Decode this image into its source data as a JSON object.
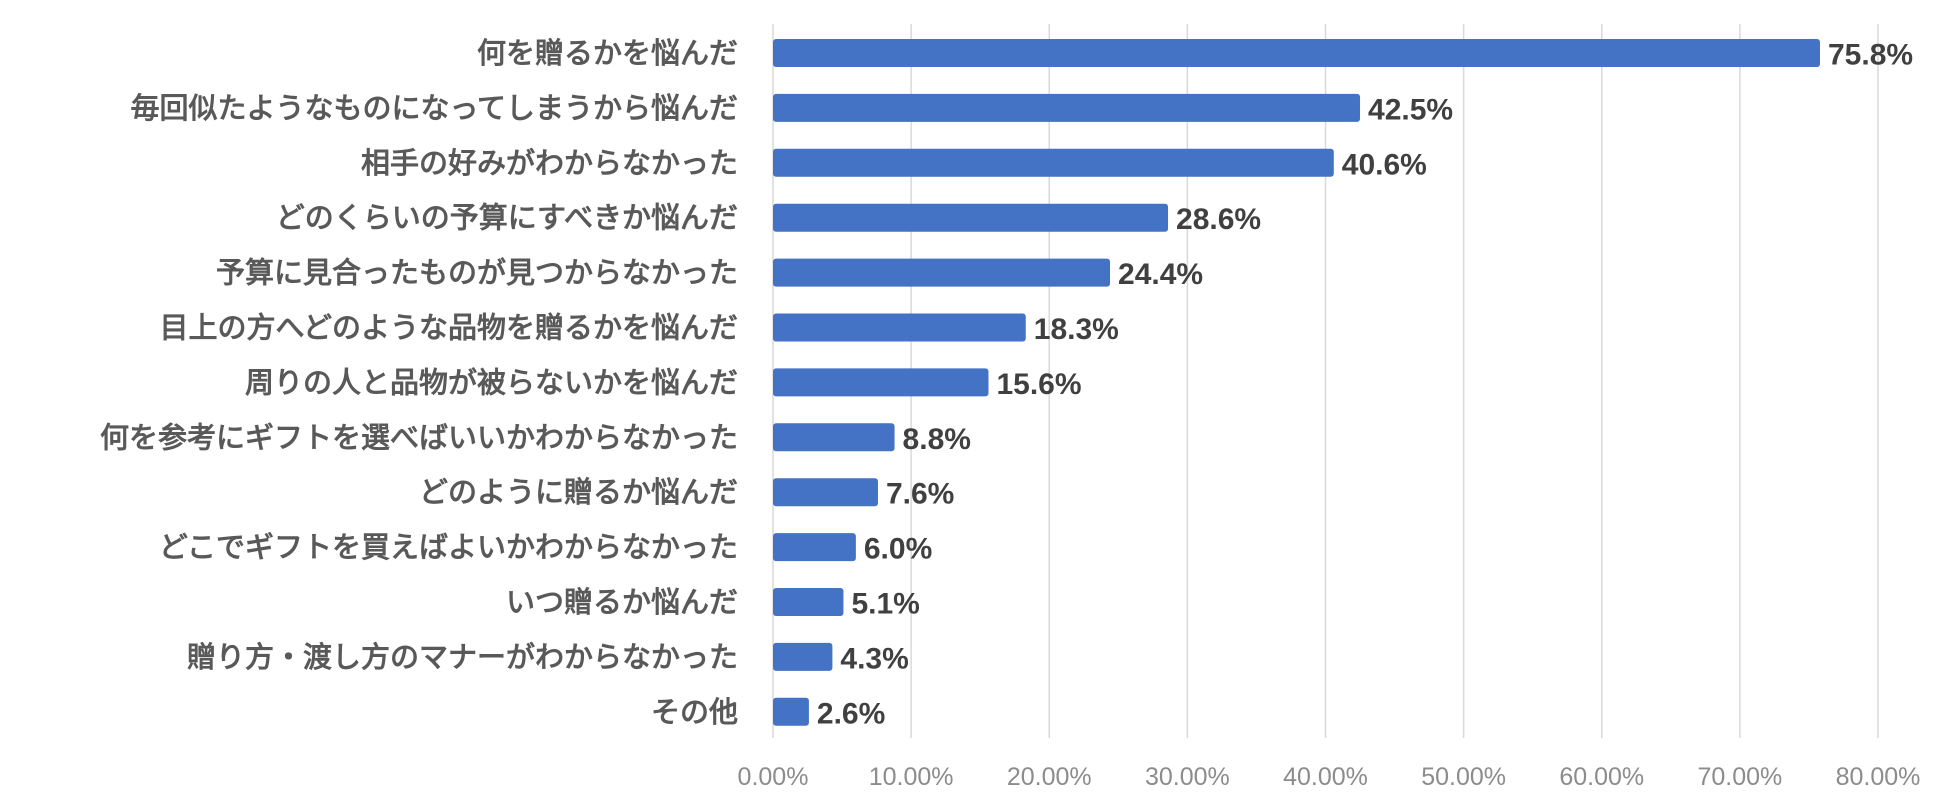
{
  "chart_data": {
    "type": "bar",
    "orientation": "horizontal",
    "title": "",
    "xlabel": "",
    "ylabel": "",
    "categories": [
      "何を贈るかを悩んだ",
      "毎回似たようなものになってしまうから悩んだ",
      "相手の好みがわからなかった",
      "どのくらいの予算にすべきか悩んだ",
      "予算に見合ったものが見つからなかった",
      "目上の方へどのような品物を贈るかを悩んだ",
      "周りの人と品物が被らないかを悩んだ",
      "何を参考にギフトを選べばいいかわからなかった",
      "どのように贈るか悩んだ",
      "どこでギフトを買えばよいかわからなかった",
      "いつ贈るか悩んだ",
      "贈り方・渡し方のマナーがわからなかった",
      "その他"
    ],
    "values": [
      75.8,
      42.5,
      40.6,
      28.6,
      24.4,
      18.3,
      15.6,
      8.8,
      7.6,
      6.0,
      5.1,
      4.3,
      2.6
    ],
    "data_labels": [
      "75.8%",
      "42.5%",
      "40.6%",
      "28.6%",
      "24.4%",
      "18.3%",
      "15.6%",
      "8.8%",
      "7.6%",
      "6.0%",
      "5.1%",
      "4.3%",
      "2.6%"
    ],
    "xlim": [
      0,
      80
    ],
    "x_ticks": [
      "0.00%",
      "10.00%",
      "20.00%",
      "30.00%",
      "40.00%",
      "50.00%",
      "60.00%",
      "70.00%",
      "80.00%"
    ],
    "grid": "vertical",
    "legend": "none",
    "bar_color": "#4472c4"
  }
}
